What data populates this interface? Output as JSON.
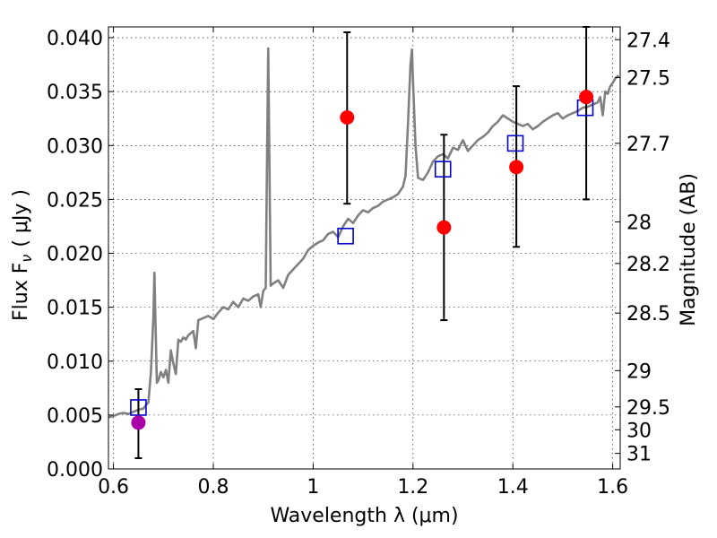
{
  "chart_data": {
    "type": "scatter",
    "xlabel": "Wavelength  λ (μm)",
    "ylabel": "Flux  F",
    "ylabel_sub": "ν",
    "ylabel_unit": "( μJy )",
    "y2label": "Magnitude (AB)",
    "xlim": [
      0.59,
      1.615
    ],
    "ylim": [
      0.0,
      0.041
    ],
    "grid": true,
    "x_ticks": [
      {
        "value": 0.6,
        "label": "0.6"
      },
      {
        "value": 0.8,
        "label": "0.8"
      },
      {
        "value": 1.0,
        "label": "1"
      },
      {
        "value": 1.2,
        "label": "1.2"
      },
      {
        "value": 1.4,
        "label": "1.4"
      },
      {
        "value": 1.6,
        "label": "1.6"
      }
    ],
    "y_ticks": [
      {
        "value": 0.0,
        "label": "0.000"
      },
      {
        "value": 0.005,
        "label": "0.005"
      },
      {
        "value": 0.01,
        "label": "0.010"
      },
      {
        "value": 0.015,
        "label": "0.015"
      },
      {
        "value": 0.02,
        "label": "0.020"
      },
      {
        "value": 0.025,
        "label": "0.025"
      },
      {
        "value": 0.03,
        "label": "0.030"
      },
      {
        "value": 0.035,
        "label": "0.035"
      },
      {
        "value": 0.04,
        "label": "0.040"
      }
    ],
    "y2_ticks": [
      {
        "mag": 27.4,
        "label": "27.4"
      },
      {
        "mag": 27.5,
        "label": "27.5"
      },
      {
        "mag": 27.7,
        "label": "27.7"
      },
      {
        "mag": 28.0,
        "label": "28"
      },
      {
        "mag": 28.2,
        "label": "28.2"
      },
      {
        "mag": 28.5,
        "label": "28.5"
      },
      {
        "mag": 29.0,
        "label": "29"
      },
      {
        "mag": 29.5,
        "label": "29.5"
      },
      {
        "mag": 30.0,
        "label": "30"
      },
      {
        "mag": 31.0,
        "label": "31"
      }
    ],
    "spectrum": {
      "color": "#808080",
      "points": [
        [
          0.59,
          0.0048
        ],
        [
          0.6,
          0.0049
        ],
        [
          0.61,
          0.0051
        ],
        [
          0.62,
          0.0052
        ],
        [
          0.63,
          0.0051
        ],
        [
          0.64,
          0.0053
        ],
        [
          0.65,
          0.0055
        ],
        [
          0.66,
          0.0056
        ],
        [
          0.67,
          0.0062
        ],
        [
          0.675,
          0.009
        ],
        [
          0.68,
          0.014
        ],
        [
          0.682,
          0.0182
        ],
        [
          0.684,
          0.014
        ],
        [
          0.687,
          0.008
        ],
        [
          0.69,
          0.0082
        ],
        [
          0.695,
          0.009
        ],
        [
          0.7,
          0.0085
        ],
        [
          0.705,
          0.0092
        ],
        [
          0.71,
          0.008
        ],
        [
          0.715,
          0.011
        ],
        [
          0.72,
          0.0098
        ],
        [
          0.725,
          0.0088
        ],
        [
          0.73,
          0.012
        ],
        [
          0.735,
          0.0118
        ],
        [
          0.74,
          0.0122
        ],
        [
          0.745,
          0.012
        ],
        [
          0.75,
          0.0124
        ],
        [
          0.76,
          0.0128
        ],
        [
          0.765,
          0.0112
        ],
        [
          0.77,
          0.0138
        ],
        [
          0.78,
          0.014
        ],
        [
          0.79,
          0.0142
        ],
        [
          0.8,
          0.0139
        ],
        [
          0.81,
          0.0145
        ],
        [
          0.82,
          0.015
        ],
        [
          0.83,
          0.0148
        ],
        [
          0.84,
          0.0155
        ],
        [
          0.85,
          0.015
        ],
        [
          0.86,
          0.0158
        ],
        [
          0.87,
          0.0156
        ],
        [
          0.88,
          0.016
        ],
        [
          0.89,
          0.0162
        ],
        [
          0.895,
          0.015
        ],
        [
          0.9,
          0.0165
        ],
        [
          0.905,
          0.0168
        ],
        [
          0.908,
          0.03
        ],
        [
          0.91,
          0.039
        ],
        [
          0.912,
          0.03
        ],
        [
          0.915,
          0.017
        ],
        [
          0.92,
          0.0172
        ],
        [
          0.93,
          0.0175
        ],
        [
          0.94,
          0.0168
        ],
        [
          0.95,
          0.018
        ],
        [
          0.96,
          0.0185
        ],
        [
          0.97,
          0.019
        ],
        [
          0.98,
          0.0195
        ],
        [
          0.99,
          0.0203
        ],
        [
          1.0,
          0.0207
        ],
        [
          1.01,
          0.021
        ],
        [
          1.02,
          0.0212
        ],
        [
          1.03,
          0.0218
        ],
        [
          1.04,
          0.022
        ],
        [
          1.05,
          0.0215
        ],
        [
          1.06,
          0.0225
        ],
        [
          1.07,
          0.0232
        ],
        [
          1.08,
          0.0228
        ],
        [
          1.09,
          0.0235
        ],
        [
          1.1,
          0.024
        ],
        [
          1.11,
          0.0238
        ],
        [
          1.12,
          0.0242
        ],
        [
          1.13,
          0.0244
        ],
        [
          1.14,
          0.0248
        ],
        [
          1.15,
          0.025
        ],
        [
          1.16,
          0.0252
        ],
        [
          1.17,
          0.0255
        ],
        [
          1.18,
          0.0262
        ],
        [
          1.185,
          0.0272
        ],
        [
          1.19,
          0.032
        ],
        [
          1.195,
          0.0375
        ],
        [
          1.198,
          0.0389
        ],
        [
          1.2,
          0.036
        ],
        [
          1.205,
          0.03
        ],
        [
          1.21,
          0.027
        ],
        [
          1.22,
          0.0268
        ],
        [
          1.23,
          0.0275
        ],
        [
          1.24,
          0.0285
        ],
        [
          1.25,
          0.029
        ],
        [
          1.26,
          0.0292
        ],
        [
          1.27,
          0.0288
        ],
        [
          1.28,
          0.0298
        ],
        [
          1.29,
          0.0296
        ],
        [
          1.3,
          0.0305
        ],
        [
          1.31,
          0.0295
        ],
        [
          1.32,
          0.03
        ],
        [
          1.33,
          0.0305
        ],
        [
          1.34,
          0.0308
        ],
        [
          1.35,
          0.0312
        ],
        [
          1.36,
          0.0318
        ],
        [
          1.37,
          0.0322
        ],
        [
          1.38,
          0.0328
        ],
        [
          1.39,
          0.0325
        ],
        [
          1.4,
          0.0322
        ],
        [
          1.41,
          0.032
        ],
        [
          1.42,
          0.0318
        ],
        [
          1.43,
          0.032
        ],
        [
          1.44,
          0.0315
        ],
        [
          1.45,
          0.0318
        ],
        [
          1.46,
          0.0322
        ],
        [
          1.47,
          0.0325
        ],
        [
          1.48,
          0.0328
        ],
        [
          1.49,
          0.033
        ],
        [
          1.5,
          0.0325
        ],
        [
          1.51,
          0.0328
        ],
        [
          1.52,
          0.033
        ],
        [
          1.53,
          0.0332
        ],
        [
          1.54,
          0.0335
        ],
        [
          1.55,
          0.0336
        ],
        [
          1.56,
          0.0338
        ],
        [
          1.57,
          0.034
        ],
        [
          1.575,
          0.0345
        ],
        [
          1.58,
          0.0328
        ],
        [
          1.585,
          0.035
        ],
        [
          1.59,
          0.0348
        ],
        [
          1.595,
          0.0355
        ],
        [
          1.6,
          0.0358
        ],
        [
          1.605,
          0.0362
        ],
        [
          1.612,
          0.0365
        ]
      ]
    },
    "model_points": {
      "color": "#0000cc",
      "marker": "open-square",
      "points": [
        [
          0.65,
          0.0057
        ],
        [
          1.065,
          0.0216
        ],
        [
          1.26,
          0.0278
        ],
        [
          1.405,
          0.0302
        ],
        [
          1.545,
          0.0335
        ]
      ]
    },
    "observed_points": {
      "marker": "filled-circle",
      "points": [
        {
          "x": 0.65,
          "y": 0.0043,
          "ylo": 0.001,
          "yhi": 0.0074,
          "color": "#aa00aa"
        },
        {
          "x": 1.068,
          "y": 0.0326,
          "ylo": 0.0246,
          "yhi": 0.0405,
          "color": "#ff0000"
        },
        {
          "x": 1.262,
          "y": 0.0224,
          "ylo": 0.0138,
          "yhi": 0.031,
          "color": "#ff0000"
        },
        {
          "x": 1.407,
          "y": 0.028,
          "ylo": 0.0206,
          "yhi": 0.0355,
          "color": "#ff0000"
        },
        {
          "x": 1.547,
          "y": 0.0345,
          "ylo": 0.025,
          "yhi": 0.041,
          "color": "#ff0000"
        }
      ]
    }
  }
}
